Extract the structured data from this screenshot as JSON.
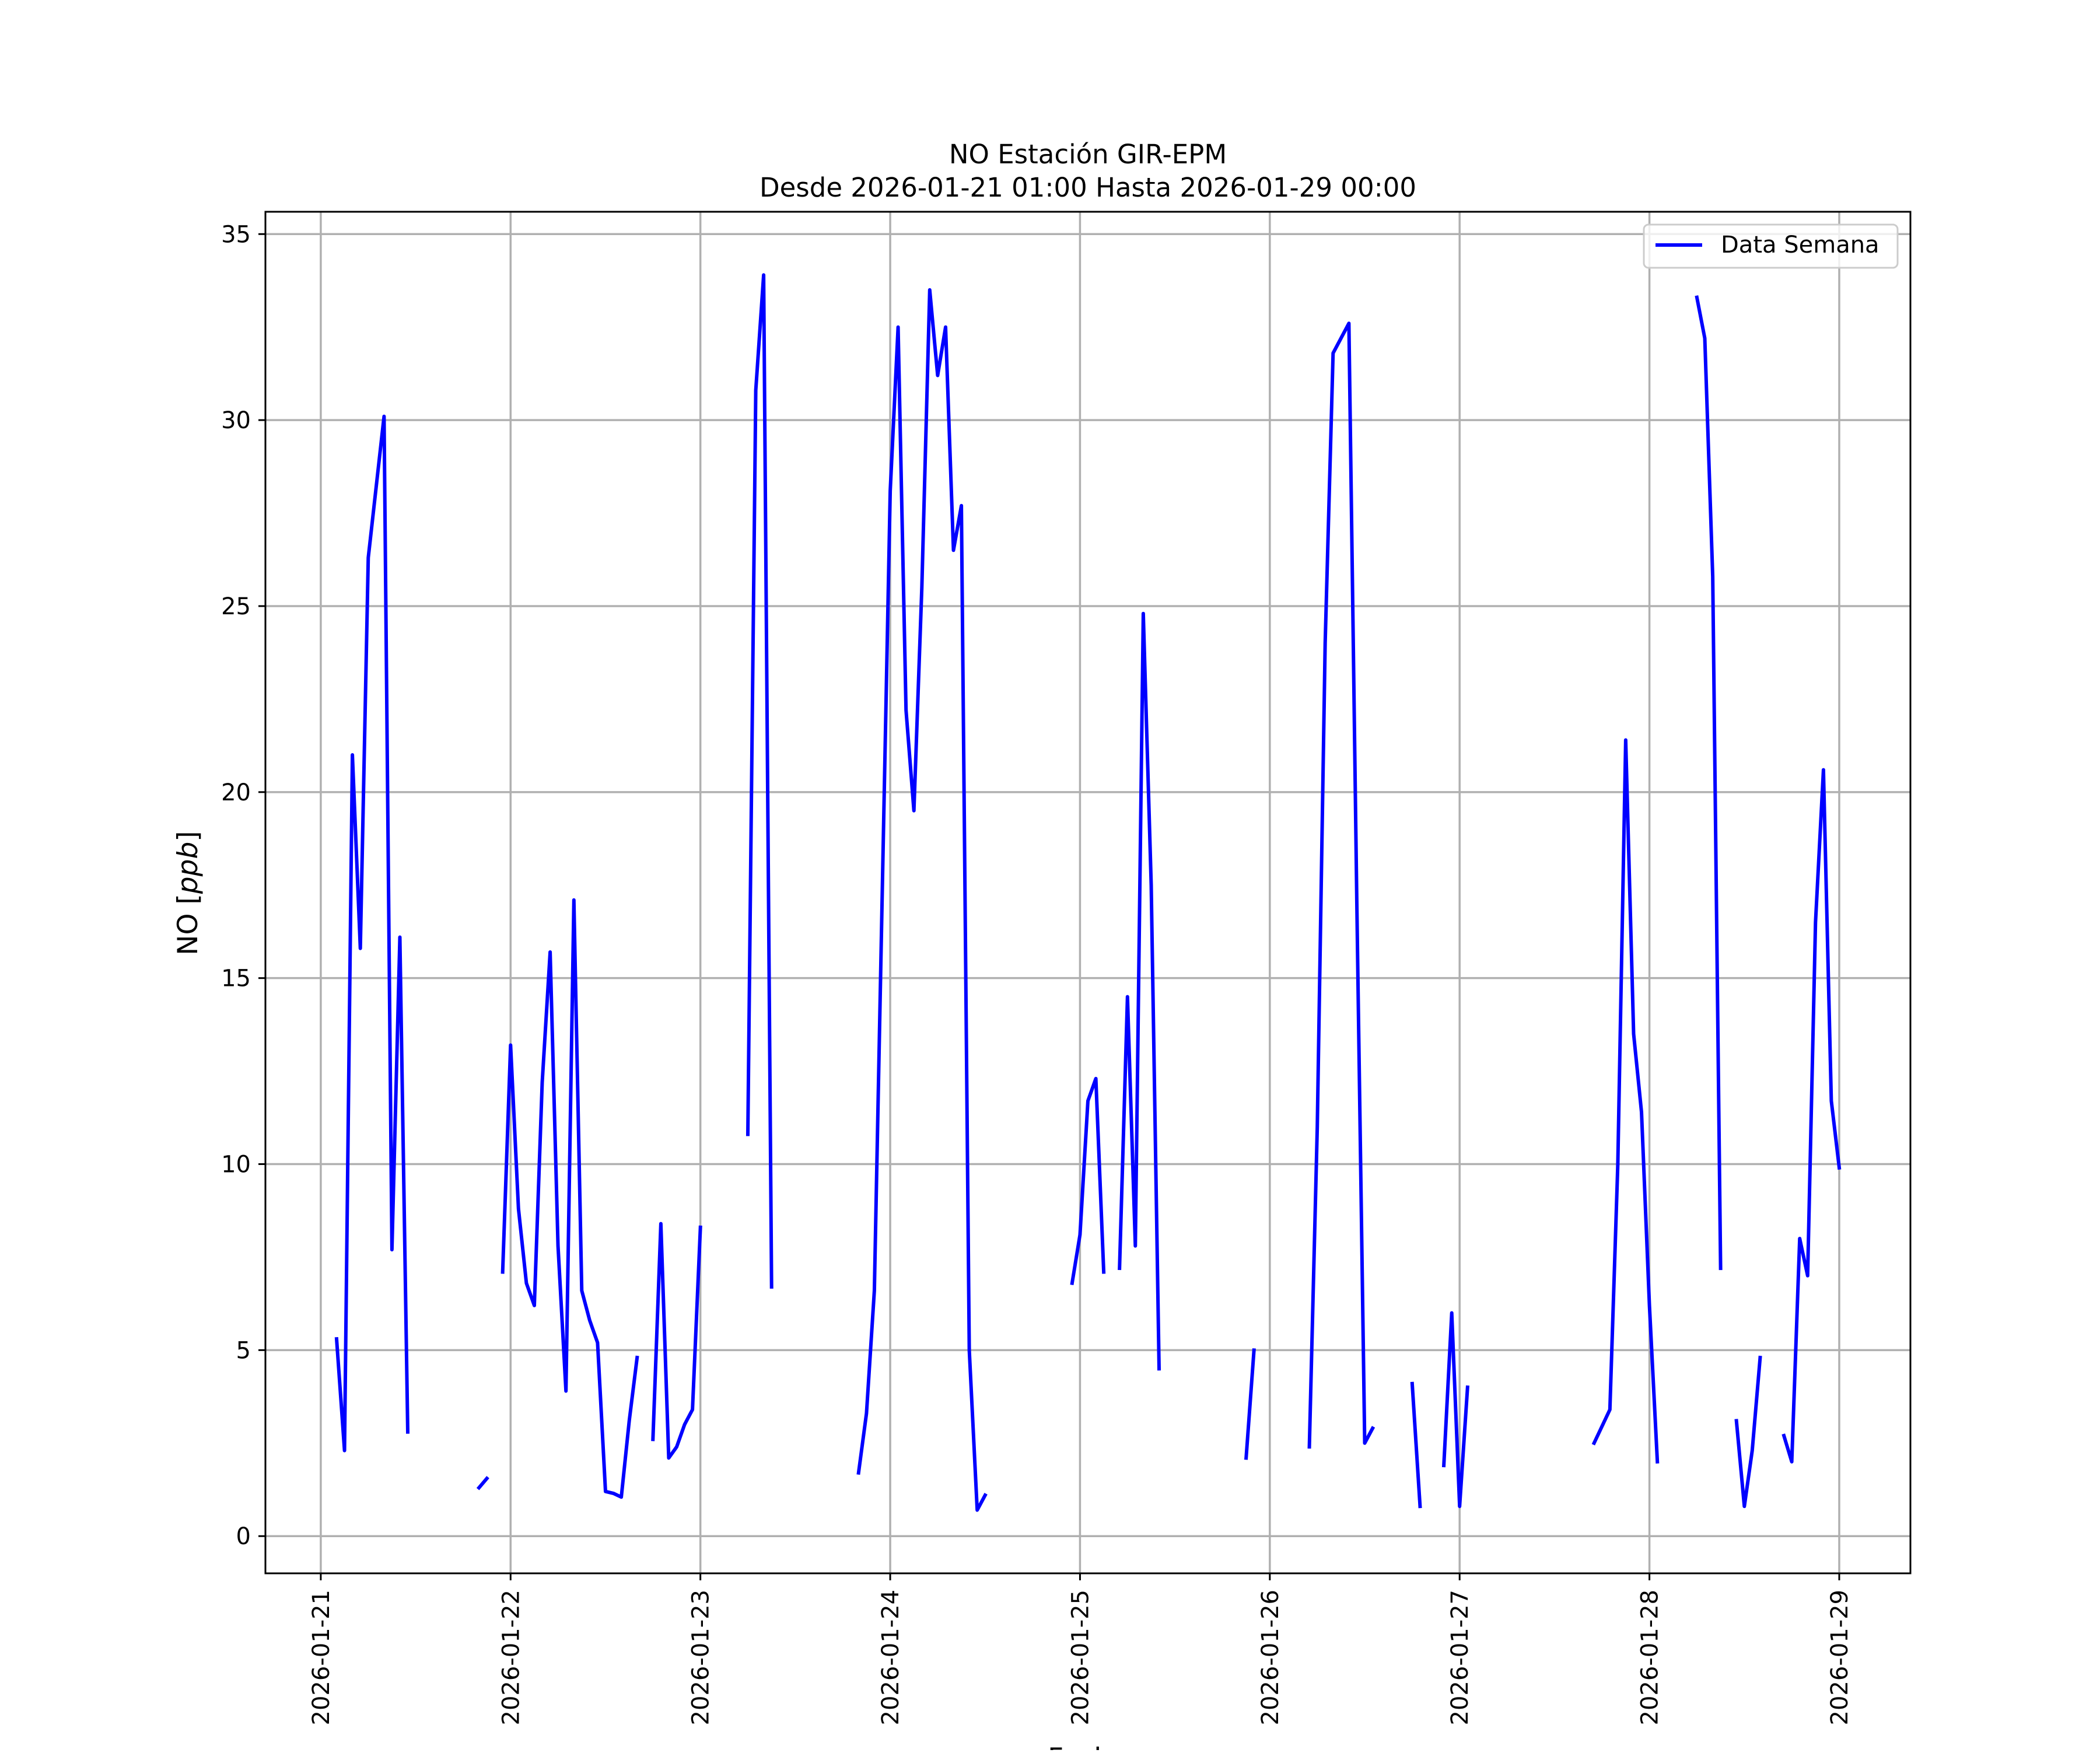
{
  "chart_data": {
    "type": "line",
    "title_line1": "NO Estación GIR-EPM",
    "title_line2": "Desde 2026-01-21 01:00 Hasta 2026-01-29 00:00",
    "xlabel": "Fecha",
    "ylabel_prefix": "NO [",
    "ylabel_unit": "ppb",
    "ylabel_suffix": "]",
    "x_axis": "datetime",
    "xlim": [
      "2026-01-20 17:00",
      "2026-01-29 09:00"
    ],
    "ylim": [
      -1.0,
      35.6
    ],
    "grid": true,
    "legend_position": "top-right",
    "x_ticks": [
      "2026-01-21",
      "2026-01-22",
      "2026-01-23",
      "2026-01-24",
      "2026-01-25",
      "2026-01-26",
      "2026-01-27",
      "2026-01-28",
      "2026-01-29"
    ],
    "y_ticks": [
      0,
      5,
      10,
      15,
      20,
      25,
      30,
      35
    ],
    "colors": {
      "series": "#0000ff",
      "grid": "#b0b0b0",
      "frame": "#000000"
    },
    "series": [
      {
        "name": "Data Semana",
        "segments": [
          [
            [
              "2026-01-21 02:00",
              5.3
            ],
            [
              "2026-01-21 03:00",
              2.3
            ],
            [
              "2026-01-21 04:00",
              21.0
            ],
            [
              "2026-01-21 05:00",
              15.8
            ],
            [
              "2026-01-21 06:00",
              26.3
            ],
            [
              "2026-01-21 08:00",
              30.1
            ],
            [
              "2026-01-21 09:00",
              7.7
            ],
            [
              "2026-01-21 10:00",
              16.1
            ],
            [
              "2026-01-21 11:00",
              2.8
            ]
          ],
          [
            [
              "2026-01-21 20:00",
              1.3
            ],
            [
              "2026-01-21 21:00",
              1.55
            ]
          ],
          [
            [
              "2026-01-21 23:00",
              7.1
            ],
            [
              "2026-01-22 00:00",
              13.2
            ],
            [
              "2026-01-22 01:00",
              8.8
            ],
            [
              "2026-01-22 02:00",
              6.8
            ],
            [
              "2026-01-22 03:00",
              6.2
            ],
            [
              "2026-01-22 04:00",
              12.2
            ],
            [
              "2026-01-22 05:00",
              15.7
            ],
            [
              "2026-01-22 06:00",
              7.8
            ],
            [
              "2026-01-22 07:00",
              3.9
            ],
            [
              "2026-01-22 08:00",
              17.1
            ],
            [
              "2026-01-22 09:00",
              6.6
            ],
            [
              "2026-01-22 10:00",
              5.8
            ],
            [
              "2026-01-22 11:00",
              5.2
            ],
            [
              "2026-01-22 12:00",
              1.2
            ],
            [
              "2026-01-22 13:00",
              1.15
            ],
            [
              "2026-01-22 14:00",
              1.05
            ],
            [
              "2026-01-22 15:00",
              3.1
            ],
            [
              "2026-01-22 16:00",
              4.8
            ]
          ],
          [
            [
              "2026-01-22 18:00",
              2.6
            ],
            [
              "2026-01-22 19:00",
              8.4
            ],
            [
              "2026-01-22 20:00",
              2.1
            ],
            [
              "2026-01-22 21:00",
              2.4
            ],
            [
              "2026-01-22 22:00",
              3.0
            ],
            [
              "2026-01-22 23:00",
              3.4
            ],
            [
              "2026-01-23 00:00",
              8.3
            ]
          ],
          [
            [
              "2026-01-23 06:00",
              10.8
            ],
            [
              "2026-01-23 07:00",
              30.8
            ],
            [
              "2026-01-23 08:00",
              33.9
            ],
            [
              "2026-01-23 09:00",
              6.7
            ]
          ],
          [
            [
              "2026-01-23 20:00",
              1.7
            ],
            [
              "2026-01-23 21:00",
              3.3
            ],
            [
              "2026-01-23 22:00",
              6.6
            ],
            [
              "2026-01-24 00:00",
              28.1
            ],
            [
              "2026-01-24 01:00",
              32.5
            ],
            [
              "2026-01-24 02:00",
              22.2
            ],
            [
              "2026-01-24 03:00",
              19.5
            ],
            [
              "2026-01-24 04:00",
              25.5
            ],
            [
              "2026-01-24 05:00",
              33.5
            ],
            [
              "2026-01-24 06:00",
              31.2
            ],
            [
              "2026-01-24 07:00",
              32.5
            ],
            [
              "2026-01-24 08:00",
              26.5
            ],
            [
              "2026-01-24 09:00",
              27.7
            ],
            [
              "2026-01-24 10:00",
              5.0
            ],
            [
              "2026-01-24 11:00",
              0.7
            ],
            [
              "2026-01-24 12:00",
              1.1
            ]
          ],
          [
            [
              "2026-01-24 23:00",
              6.8
            ],
            [
              "2026-01-25 00:00",
              8.1
            ],
            [
              "2026-01-25 01:00",
              11.7
            ],
            [
              "2026-01-25 02:00",
              12.3
            ],
            [
              "2026-01-25 03:00",
              7.1
            ]
          ],
          [
            [
              "2026-01-25 05:00",
              7.2
            ],
            [
              "2026-01-25 06:00",
              14.5
            ],
            [
              "2026-01-25 07:00",
              7.8
            ],
            [
              "2026-01-25 08:00",
              24.8
            ],
            [
              "2026-01-25 09:00",
              17.5
            ],
            [
              "2026-01-25 10:00",
              4.5
            ]
          ],
          [
            [
              "2026-01-25 21:00",
              2.1
            ],
            [
              "2026-01-25 22:00",
              5.0
            ]
          ],
          [
            [
              "2026-01-26 05:00",
              2.4
            ],
            [
              "2026-01-26 06:00",
              11.0
            ],
            [
              "2026-01-26 07:00",
              24.0
            ],
            [
              "2026-01-26 08:00",
              31.8
            ],
            [
              "2026-01-26 10:00",
              32.6
            ],
            [
              "2026-01-26 11:00",
              17.0
            ],
            [
              "2026-01-26 12:00",
              2.5
            ],
            [
              "2026-01-26 13:00",
              2.9
            ]
          ],
          [
            [
              "2026-01-26 18:00",
              4.1
            ],
            [
              "2026-01-26 19:00",
              0.8
            ]
          ],
          [
            [
              "2026-01-26 22:00",
              1.9
            ],
            [
              "2026-01-26 23:00",
              6.0
            ],
            [
              "2026-01-27 00:00",
              0.8
            ],
            [
              "2026-01-27 01:00",
              4.0
            ]
          ],
          [
            [
              "2026-01-27 17:00",
              2.5
            ],
            [
              "2026-01-27 19:00",
              3.4
            ],
            [
              "2026-01-27 20:00",
              10.0
            ],
            [
              "2026-01-27 21:00",
              21.4
            ],
            [
              "2026-01-27 22:00",
              13.5
            ],
            [
              "2026-01-27 23:00",
              11.4
            ],
            [
              "2026-01-28 00:00",
              6.2
            ],
            [
              "2026-01-28 01:00",
              2.0
            ]
          ],
          [
            [
              "2026-01-28 06:00",
              33.3
            ],
            [
              "2026-01-28 07:00",
              32.2
            ],
            [
              "2026-01-28 08:00",
              25.8
            ],
            [
              "2026-01-28 09:00",
              7.2
            ]
          ],
          [
            [
              "2026-01-28 11:00",
              3.1
            ],
            [
              "2026-01-28 12:00",
              0.8
            ],
            [
              "2026-01-28 13:00",
              2.3
            ],
            [
              "2026-01-28 14:00",
              4.8
            ]
          ],
          [
            [
              "2026-01-28 17:00",
              2.7
            ],
            [
              "2026-01-28 18:00",
              2.0
            ],
            [
              "2026-01-28 19:00",
              8.0
            ],
            [
              "2026-01-28 20:00",
              7.0
            ],
            [
              "2026-01-28 21:00",
              16.5
            ],
            [
              "2026-01-28 22:00",
              20.6
            ],
            [
              "2026-01-28 23:00",
              11.7
            ],
            [
              "2026-01-29 00:00",
              9.9
            ]
          ]
        ]
      }
    ]
  }
}
